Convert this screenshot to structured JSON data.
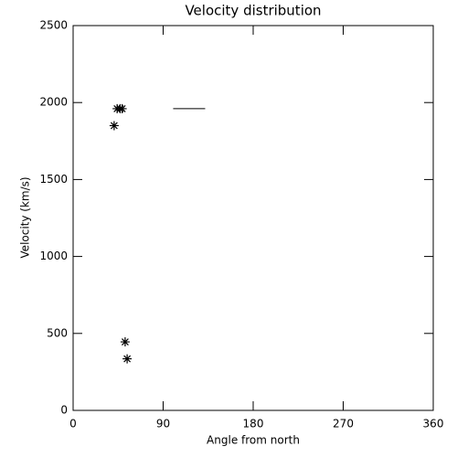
{
  "chart_data": {
    "type": "scatter",
    "title": "Velocity distribution",
    "xlabel": "Angle from north",
    "ylabel": "Velocity (km/s)",
    "xlim": [
      0,
      360
    ],
    "xticks": [
      0,
      90,
      180,
      270,
      360
    ],
    "ylim": [
      0,
      2500
    ],
    "yticks": [
      0,
      500,
      1000,
      1500,
      2000,
      2500
    ],
    "color": "#000000",
    "x": [
      44,
      47,
      49,
      41,
      52,
      54
    ],
    "values": [
      1960,
      1960,
      1960,
      1850,
      445,
      335
    ],
    "segment": {
      "x": [
        100,
        132
      ],
      "y": 1960
    }
  }
}
